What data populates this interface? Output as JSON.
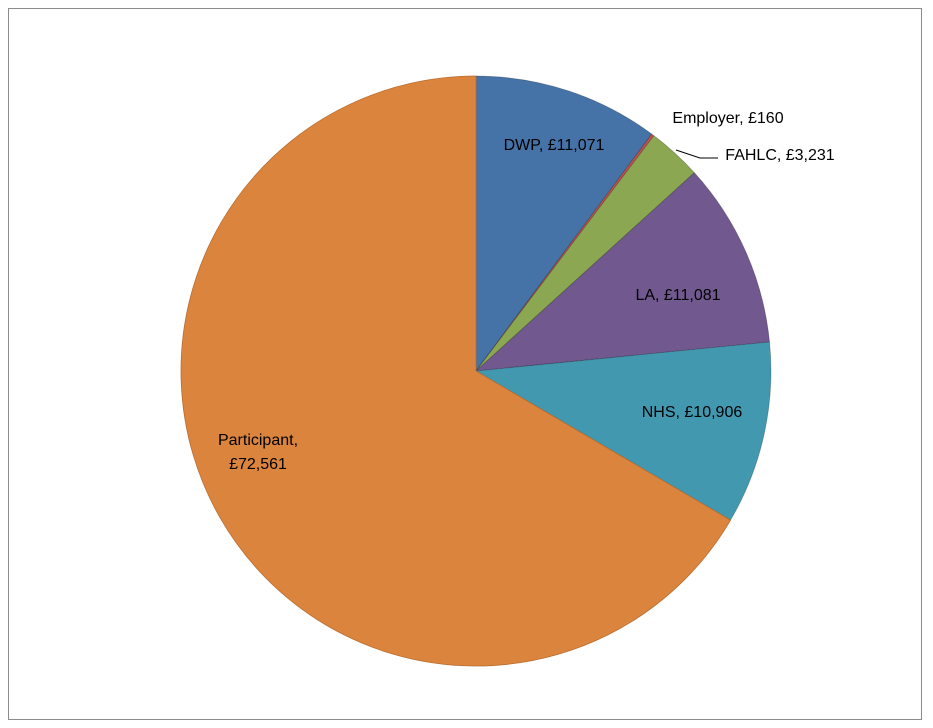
{
  "chart_data": {
    "type": "pie",
    "title": "",
    "slices": [
      {
        "label": "DWP",
        "value": 11071,
        "value_text": "£11,071",
        "color": "#4572A7"
      },
      {
        "label": "Employer",
        "value": 160,
        "value_text": "£160",
        "color": "#C0504D"
      },
      {
        "label": "FAHLC",
        "value": 3231,
        "value_text": "£3,231",
        "color": "#8BA752"
      },
      {
        "label": "LA",
        "value": 11081,
        "value_text": "£11,081",
        "color": "#71588F"
      },
      {
        "label": "NHS",
        "value": 10906,
        "value_text": "£10,906",
        "color": "#4198AF"
      },
      {
        "label": "Participant",
        "value": 72561,
        "value_text": "£72,561",
        "color": "#DB843D"
      }
    ],
    "legend": "none",
    "data_labels": "category, value"
  }
}
